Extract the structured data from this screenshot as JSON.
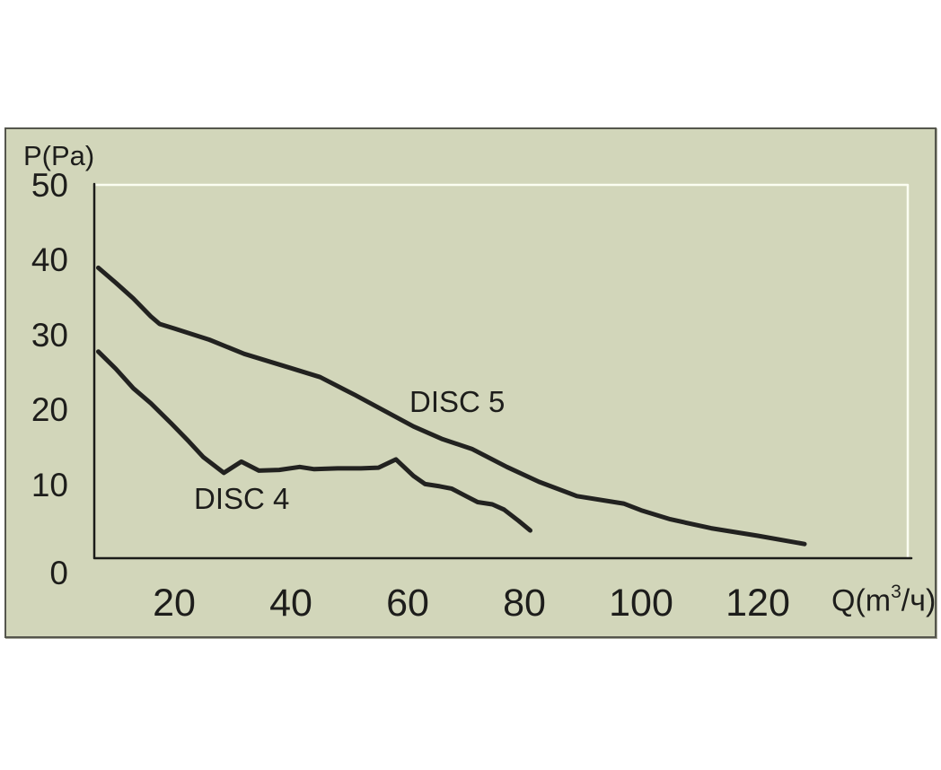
{
  "chart": {
    "y_axis_title": "P(Pa)",
    "x_axis_title": {
      "prefix": "Q(m",
      "sup": "3",
      "suffix": "/ч)"
    }
  },
  "chart_data": {
    "type": "line",
    "title": "",
    "xlabel": "Q(m³/ч)",
    "ylabel": "P(Pa)",
    "x_ticks": [
      20,
      40,
      60,
      80,
      100,
      120
    ],
    "y_ticks": [
      50,
      40,
      30,
      20,
      10,
      0
    ],
    "xlim": [
      6,
      146
    ],
    "ylim": [
      0,
      50
    ],
    "grid": false,
    "legend_position": "inline-annotations",
    "series": [
      {
        "name": "DISC 4",
        "points": [
          [
            7,
            27.6
          ],
          [
            10,
            25.3
          ],
          [
            13,
            22.7
          ],
          [
            16,
            20.7
          ],
          [
            19.5,
            18.0
          ],
          [
            22.5,
            15.6
          ],
          [
            25,
            13.5
          ],
          [
            28.5,
            11.4
          ],
          [
            31.5,
            12.9
          ],
          [
            34.5,
            11.7
          ],
          [
            38,
            11.8
          ],
          [
            41.5,
            12.2
          ],
          [
            44,
            11.9
          ],
          [
            48,
            12.0
          ],
          [
            52,
            12.0
          ],
          [
            55,
            12.1
          ],
          [
            58,
            13.2
          ],
          [
            61,
            11.0
          ],
          [
            63,
            9.9
          ],
          [
            65.5,
            9.6
          ],
          [
            67.5,
            9.3
          ],
          [
            70,
            8.3
          ],
          [
            72,
            7.5
          ],
          [
            74.5,
            7.2
          ],
          [
            76.5,
            6.5
          ],
          [
            79,
            5.0
          ],
          [
            81,
            3.7
          ]
        ]
      },
      {
        "name": "DISC 5",
        "points": [
          [
            7,
            38.8
          ],
          [
            10,
            36.8
          ],
          [
            13,
            34.7
          ],
          [
            16,
            32.3
          ],
          [
            17.5,
            31.3
          ],
          [
            20,
            30.7
          ],
          [
            26,
            29.2
          ],
          [
            32,
            27.3
          ],
          [
            40,
            25.4
          ],
          [
            45,
            24.2
          ],
          [
            51,
            21.8
          ],
          [
            56,
            19.7
          ],
          [
            61,
            17.6
          ],
          [
            66,
            15.9
          ],
          [
            71,
            14.6
          ],
          [
            77,
            12.2
          ],
          [
            82.5,
            10.2
          ],
          [
            89,
            8.3
          ],
          [
            97,
            7.3
          ],
          [
            100,
            6.4
          ],
          [
            105,
            5.2
          ],
          [
            112,
            4.0
          ],
          [
            120,
            3.0
          ],
          [
            128,
            1.9
          ]
        ]
      }
    ]
  },
  "colors": {
    "panel_background": "#d2d6ba",
    "panel_border": "#55564d",
    "axis_line": "#1b1b19",
    "inner_highlight_line": "#fbfdf1",
    "curve": "#222220",
    "text": "#1d1d1b"
  }
}
